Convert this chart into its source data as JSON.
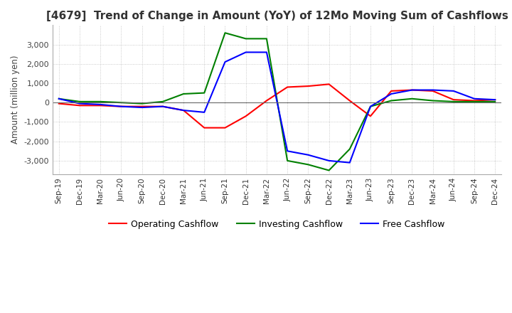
{
  "title": "[4679]  Trend of Change in Amount (YoY) of 12Mo Moving Sum of Cashflows",
  "ylabel": "Amount (million yen)",
  "ylim": [
    -3700,
    4000
  ],
  "yticks": [
    -3000,
    -2000,
    -1000,
    0,
    1000,
    2000,
    3000
  ],
  "x_labels": [
    "Sep-19",
    "Dec-19",
    "Mar-20",
    "Jun-20",
    "Sep-20",
    "Dec-20",
    "Mar-21",
    "Jun-21",
    "Sep-21",
    "Dec-21",
    "Mar-22",
    "Jun-22",
    "Sep-22",
    "Dec-22",
    "Mar-23",
    "Jun-23",
    "Sep-23",
    "Dec-23",
    "Mar-24",
    "Jun-24",
    "Sep-24",
    "Dec-24"
  ],
  "operating": [
    -50,
    -150,
    -150,
    -200,
    -200,
    -200,
    -400,
    -1300,
    -1300,
    -700,
    100,
    800,
    850,
    950,
    100,
    -700,
    600,
    650,
    600,
    150,
    100,
    150
  ],
  "investing": [
    200,
    50,
    50,
    0,
    -50,
    50,
    450,
    500,
    3600,
    3300,
    3300,
    -3000,
    -3200,
    -3500,
    -2400,
    -200,
    100,
    200,
    100,
    50,
    50,
    50
  ],
  "free": [
    200,
    -50,
    -100,
    -200,
    -250,
    -200,
    -400,
    -500,
    2100,
    2600,
    2600,
    -2500,
    -2700,
    -3000,
    -3100,
    -200,
    450,
    650,
    650,
    600,
    200,
    150
  ],
  "operating_color": "#ff0000",
  "investing_color": "#008000",
  "free_color": "#0000ff",
  "background_color": "#ffffff",
  "grid_color": "#aaaaaa",
  "title_fontsize": 11,
  "legend_labels": [
    "Operating Cashflow",
    "Investing Cashflow",
    "Free Cashflow"
  ]
}
